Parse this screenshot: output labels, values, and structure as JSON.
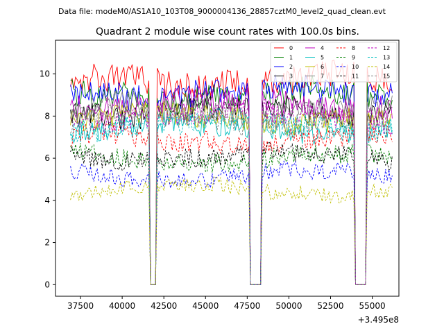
{
  "figure": {
    "suptitle": "Data file: modeM0/AS1A10_103T08_9000004136_28857cztM0_level2_quad_clean.evt",
    "title": "Quadrant 2 module wise count rates with 100.0s bins.",
    "x_offset_label": "+3.495e8"
  },
  "chart_data": {
    "type": "line",
    "title": "Quadrant 2 module wise count rates with 100.0s bins.",
    "xlabel": "",
    "ylabel": "",
    "x_offset": 349500000,
    "x_offset_label": "+3.495e8",
    "xlim": [
      36000,
      56600
    ],
    "ylim": [
      -0.55,
      11.6
    ],
    "xticks": [
      37500,
      40000,
      42500,
      45000,
      47500,
      50000,
      52500,
      55000
    ],
    "xtick_labels": [
      "37500",
      "40000",
      "42500",
      "45000",
      "47500",
      "50000",
      "52500",
      "55000"
    ],
    "yticks": [
      0,
      2,
      4,
      6,
      8,
      10
    ],
    "ytick_labels": [
      "0",
      "2",
      "4",
      "6",
      "8",
      "10"
    ],
    "grid": false,
    "legend_position": "top-right",
    "legend_columns": 4,
    "x_start": 36900,
    "x_end": 56200,
    "bin_width": 100,
    "gaps": [
      {
        "from": 41700,
        "to": 42000,
        "value": 0
      },
      {
        "from": 47700,
        "to": 48300,
        "value": 0
      },
      {
        "from": 54000,
        "to": 54600,
        "value": 0
      }
    ],
    "series": [
      {
        "name": "0",
        "color": "#ff0000",
        "dash": "solid",
        "level": 9.7
      },
      {
        "name": "1",
        "color": "#008000",
        "dash": "solid",
        "level": 9.0
      },
      {
        "name": "2",
        "color": "#0000ff",
        "dash": "solid",
        "level": 9.1
      },
      {
        "name": "3",
        "color": "#000000",
        "dash": "solid",
        "level": 8.2
      },
      {
        "name": "4",
        "color": "#bf00bf",
        "dash": "solid",
        "level": 8.6
      },
      {
        "name": "5",
        "color": "#00bfbf",
        "dash": "solid",
        "level": 7.4
      },
      {
        "name": "6",
        "color": "#bfbf00",
        "dash": "solid",
        "level": 7.9
      },
      {
        "name": "7",
        "color": "#808080",
        "dash": "solid",
        "level": 8.3
      },
      {
        "name": "8",
        "color": "#ff0000",
        "dash": "dashed",
        "level": 6.9
      },
      {
        "name": "9",
        "color": "#008000",
        "dash": "dashed",
        "level": 6.0
      },
      {
        "name": "10",
        "color": "#0000ff",
        "dash": "dashed",
        "level": 5.2
      },
      {
        "name": "11",
        "color": "#000000",
        "dash": "dashed",
        "level": 6.1
      },
      {
        "name": "12",
        "color": "#bf00bf",
        "dash": "dashed",
        "level": 8.0
      },
      {
        "name": "13",
        "color": "#00bfbf",
        "dash": "dashed",
        "level": 7.6
      },
      {
        "name": "14",
        "color": "#bfbf00",
        "dash": "dashed",
        "level": 4.5
      },
      {
        "name": "15",
        "color": "#808080",
        "dash": "dashed",
        "level": 7.8
      }
    ]
  }
}
